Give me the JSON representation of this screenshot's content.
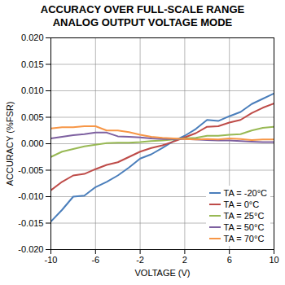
{
  "chart_data": {
    "type": "line",
    "title": "ACCURACY OVER FULL-SCALE RANGE",
    "subtitle": "ANALOG OUTPUT VOLTAGE MODE",
    "x_label": "VOLTAGE (V)",
    "y_label": "ACCURACY (%FSR)",
    "x": [
      -10,
      -9,
      -8,
      -7,
      -6,
      -5,
      -4,
      -3,
      -2,
      -1,
      0,
      1,
      2,
      3,
      4,
      5,
      6,
      7,
      8,
      9,
      10
    ],
    "series": [
      {
        "name": "TA = -20°C",
        "color": "#4a7ebb",
        "values": [
          -0.0147,
          -0.0125,
          -0.01,
          -0.0098,
          -0.0082,
          -0.0072,
          -0.006,
          -0.0045,
          -0.0028,
          -0.002,
          -0.0008,
          0.0005,
          0.0015,
          0.0028,
          0.0045,
          0.0043,
          0.0052,
          0.006,
          0.0075,
          0.0085,
          0.0095
        ]
      },
      {
        "name": "TA = 0°C",
        "color": "#be4b48",
        "values": [
          -0.0088,
          -0.0072,
          -0.006,
          -0.0057,
          -0.0048,
          -0.004,
          -0.0035,
          -0.0025,
          -0.0015,
          -0.0008,
          -0.0003,
          0.0004,
          0.0012,
          0.002,
          0.0032,
          0.0033,
          0.004,
          0.0045,
          0.0058,
          0.0068,
          0.0076
        ]
      },
      {
        "name": "TA = 25°C",
        "color": "#98b954",
        "values": [
          -0.0025,
          -0.0015,
          -0.001,
          -0.0005,
          -0.0002,
          0.0001,
          0.0002,
          0.0002,
          0.0003,
          0.0005,
          0.0006,
          0.0008,
          0.001,
          0.0011,
          0.0015,
          0.0015,
          0.0017,
          0.0018,
          0.0025,
          0.003,
          0.0032
        ]
      },
      {
        "name": "TA = 50°C",
        "color": "#7d60a0",
        "values": [
          0.001,
          0.0013,
          0.0016,
          0.0018,
          0.0021,
          0.0021,
          0.0014,
          0.0013,
          0.0012,
          0.001,
          0.0009,
          0.0009,
          0.0009,
          0.0008,
          0.0007,
          0.0006,
          0.0006,
          0.0005,
          0.0004,
          0.0003,
          0.0003
        ]
      },
      {
        "name": "TA = 70°C",
        "color": "#f79646",
        "values": [
          0.0029,
          0.0031,
          0.0031,
          0.0033,
          0.0033,
          0.0025,
          0.0025,
          0.0022,
          0.0017,
          0.0013,
          0.0011,
          0.001,
          0.0009,
          0.0008,
          0.0009,
          0.0008,
          0.001,
          0.0009,
          0.0007,
          0.0008,
          0.0008
        ]
      }
    ],
    "xlim": [
      -10,
      10
    ],
    "xticks": [
      -10,
      -6,
      -2,
      2,
      6,
      10
    ],
    "ylim": [
      -0.02,
      0.02
    ],
    "yticks": [
      {
        "value": -0.02,
        "label": "-0.020"
      },
      {
        "value": -0.015,
        "label": "-0.015"
      },
      {
        "value": -0.01,
        "label": "-0.010"
      },
      {
        "value": -0.005,
        "label": "-0.005"
      },
      {
        "value": 0,
        "label": "0.000"
      },
      {
        "value": 0.005,
        "label": "0.005"
      },
      {
        "value": 0.01,
        "label": "0.010"
      },
      {
        "value": 0.015,
        "label": "0.015"
      },
      {
        "value": 0.02,
        "label": "0.020"
      }
    ],
    "grid": true,
    "legend": "bottom-right"
  }
}
